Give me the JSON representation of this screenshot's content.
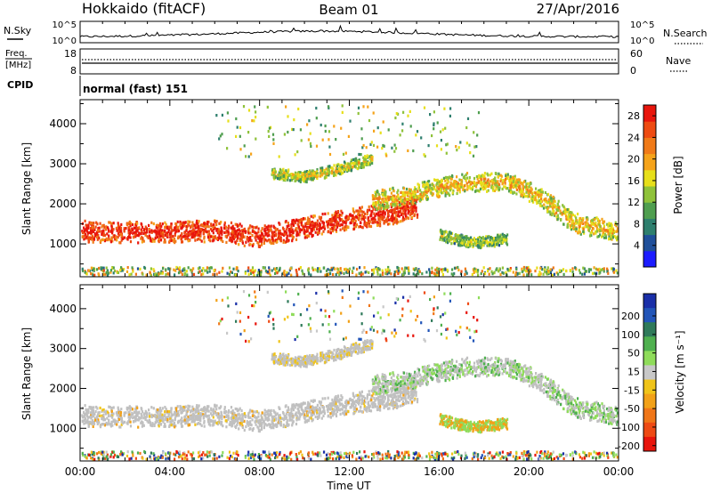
{
  "header": {
    "title_left": "Hokkaido (fitACF)",
    "title_center": "Beam 01",
    "title_right": "27/Apr/2016"
  },
  "status_panels": {
    "nsky": {
      "label": "N.Sky",
      "ticks": [
        "10^5",
        "10^0"
      ],
      "right_ticks": [
        "10^5",
        "10^0"
      ],
      "right_label": "N.Search"
    },
    "freq": {
      "label_line1": "Freq.",
      "label_line2": "[MHz]",
      "ticks": [
        "18",
        "8"
      ],
      "right_ticks": [
        "60",
        "0"
      ],
      "right_label": "Nave"
    },
    "cpid": {
      "label": "CPID",
      "text": "normal (fast) 151"
    }
  },
  "colors": {
    "power_scale": [
      "#1c1cff",
      "#1f4f9a",
      "#2e7f6e",
      "#4f9e4f",
      "#8fc23a",
      "#e7df1a",
      "#f5a31a",
      "#f07a18",
      "#ee4b12",
      "#e8150c"
    ],
    "velocity_scale": [
      "#1a2fa8",
      "#2255b8",
      "#2f7a5a",
      "#4fb04f",
      "#8fdc5a",
      "#c8c8c8",
      "#f0c419",
      "#f2a118",
      "#f07618",
      "#ee4a14",
      "#e8150c"
    ],
    "ground_scatter": "#c0c0c0"
  },
  "chart_data": [
    {
      "type": "heatmap",
      "panel": "power",
      "ylabel": "Slant Range [km]",
      "xlabel": "",
      "y_ticks": [
        "1000",
        "2000",
        "3000",
        "4000"
      ],
      "ylim": [
        180,
        4600
      ],
      "xlim": [
        0,
        24
      ],
      "colorbar": {
        "label": "Power [dB]",
        "ticks": [
          "4",
          "8",
          "12",
          "16",
          "20",
          "24",
          "28"
        ],
        "range": [
          0,
          30
        ]
      },
      "features": [
        {
          "name": "main_band",
          "x": [
            0,
            2,
            4,
            6,
            8,
            10,
            12,
            14,
            15
          ],
          "y_center": [
            1350,
            1320,
            1330,
            1350,
            1200,
            1450,
            1650,
            1800,
            1950
          ],
          "thickness_km": 380,
          "power_db": 24
        },
        {
          "name": "high_band",
          "x": [
            13,
            15,
            17,
            19,
            20.5,
            22,
            24
          ],
          "y_center": [
            2100,
            2300,
            2550,
            2600,
            2200,
            1550,
            1350
          ],
          "thickness_km": 350,
          "power_db": 14
        },
        {
          "name": "arc_3000",
          "x": [
            8.5,
            10,
            11.5,
            13
          ],
          "y_center": [
            2800,
            2700,
            2900,
            3150
          ],
          "thickness_km": 200,
          "power_db": 12
        },
        {
          "name": "low_arc",
          "x": [
            16,
            17.5,
            19
          ],
          "y_center": [
            1250,
            1050,
            1150
          ],
          "thickness_km": 200,
          "power_db": 10
        }
      ]
    },
    {
      "type": "heatmap",
      "panel": "velocity",
      "ylabel": "Slant Range [km]",
      "xlabel": "Time UT",
      "y_ticks": [
        "1000",
        "2000",
        "3000",
        "4000"
      ],
      "x_ticks": [
        "00:00",
        "04:00",
        "08:00",
        "12:00",
        "16:00",
        "20:00",
        "00:00"
      ],
      "ylim": [
        180,
        4600
      ],
      "xlim": [
        0,
        24
      ],
      "colorbar": {
        "label": "Velocity [m s⁻¹]",
        "ticks": [
          "200",
          "100",
          "50",
          "15",
          "-15",
          "-50",
          "-100",
          "-200"
        ]
      },
      "features": [
        {
          "name": "main_band",
          "dominant": "ground_scatter"
        },
        {
          "name": "high_band",
          "dominant": "ground_scatter with 15 to 50 m/s"
        },
        {
          "name": "arc_3000",
          "dominant": "ground_scatter"
        }
      ]
    }
  ]
}
